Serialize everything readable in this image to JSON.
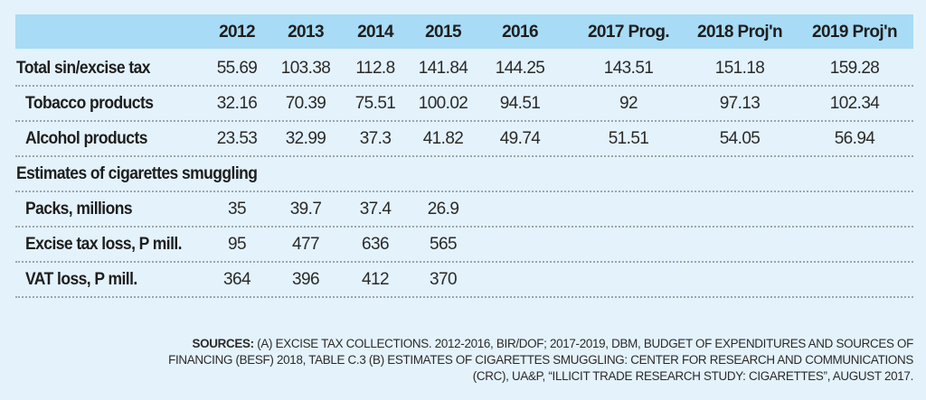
{
  "colors": {
    "background": "#e4f2fb",
    "header_band": "#a8dbf5",
    "text": "#1e1e1e"
  },
  "table": {
    "columns": [
      "2012",
      "2013",
      "2014",
      "2015",
      "2016",
      "2017 Prog.",
      "2018 Proj'n",
      "2019 Proj'n"
    ],
    "rows": [
      {
        "label": "Total sin/excise tax",
        "indent": false,
        "values": [
          "55.69",
          "103.38",
          "112.8",
          "141.84",
          "144.25",
          "143.51",
          "151.18",
          "159.28"
        ]
      },
      {
        "label": "Tobacco products",
        "indent": true,
        "values": [
          "32.16",
          "70.39",
          "75.51",
          "100.02",
          "94.51",
          "92",
          "97.13",
          "102.34"
        ]
      },
      {
        "label": "Alcohol products",
        "indent": true,
        "values": [
          "23.53",
          "32.99",
          "37.3",
          "41.82",
          "49.74",
          "51.51",
          "54.05",
          "56.94"
        ]
      },
      {
        "label": "Estimates of cigarettes smuggling",
        "indent": false,
        "values": []
      },
      {
        "label": "Packs, millions",
        "indent": true,
        "values": [
          "35",
          "39.7",
          "37.4",
          "26.9"
        ]
      },
      {
        "label": "Excise tax loss, P mill.",
        "indent": true,
        "values": [
          "95",
          "477",
          "636",
          "565"
        ]
      },
      {
        "label": "VAT loss, P mill.",
        "indent": true,
        "values": [
          "364",
          "396",
          "412",
          "370"
        ]
      }
    ]
  },
  "sources": {
    "label": "SOURCES:",
    "line1": " (A) EXCISE TAX COLLECTIONS. 2012-2016, BIR/DOF; 2017-2019, DBM, BUDGET OF EXPENDITURES AND SOURCES OF",
    "line2": "FINANCING (BESF) 2018, TABLE C.3  (B) ESTIMATES OF CIGARETTES SMUGGLING: CENTER FOR RESEARCH AND COMMUNICATIONS",
    "line3": "(CRC), UA&P, “ILLICIT TRADE RESEARCH STUDY: CIGARETTES”, AUGUST 2017."
  }
}
